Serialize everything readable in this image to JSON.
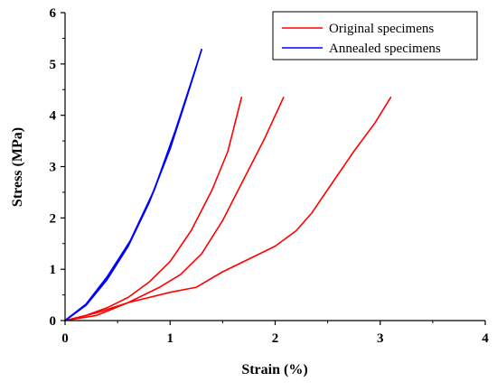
{
  "chart_data": {
    "type": "line",
    "xlabel": "Strain (%)",
    "ylabel": "Stress (MPa)",
    "xlim": [
      0,
      4
    ],
    "ylim": [
      0,
      6
    ],
    "x_ticks": [
      0,
      1,
      2,
      3,
      4
    ],
    "y_ticks": [
      0,
      1,
      2,
      3,
      4,
      5,
      6
    ],
    "x_tick_labels": [
      "0",
      "1",
      "2",
      "3",
      "4"
    ],
    "y_tick_labels": [
      "0",
      "1",
      "2",
      "3",
      "4",
      "5",
      "6"
    ],
    "grid": false,
    "legend_position": "top-right",
    "legend": [
      {
        "label": "Original specimens",
        "color": "#ff0000"
      },
      {
        "label": "Annealed specimens",
        "color": "#0000ff"
      }
    ],
    "series": [
      {
        "group": "Original specimens",
        "color": "#ff0000",
        "points": [
          [
            0,
            0
          ],
          [
            0.2,
            0.1
          ],
          [
            0.4,
            0.25
          ],
          [
            0.6,
            0.45
          ],
          [
            0.8,
            0.75
          ],
          [
            1.0,
            1.15
          ],
          [
            1.2,
            1.75
          ],
          [
            1.4,
            2.55
          ],
          [
            1.55,
            3.3
          ],
          [
            1.68,
            4.35
          ]
        ]
      },
      {
        "group": "Original specimens",
        "color": "#ff0000",
        "points": [
          [
            0,
            0
          ],
          [
            0.3,
            0.1
          ],
          [
            0.6,
            0.35
          ],
          [
            0.9,
            0.65
          ],
          [
            1.1,
            0.9
          ],
          [
            1.3,
            1.3
          ],
          [
            1.5,
            1.95
          ],
          [
            1.7,
            2.75
          ],
          [
            1.9,
            3.55
          ],
          [
            2.08,
            4.35
          ]
        ]
      },
      {
        "group": "Original specimens",
        "color": "#ff0000",
        "points": [
          [
            0,
            0
          ],
          [
            0.3,
            0.15
          ],
          [
            0.6,
            0.35
          ],
          [
            1.0,
            0.55
          ],
          [
            1.25,
            0.65
          ],
          [
            1.5,
            0.95
          ],
          [
            1.8,
            1.25
          ],
          [
            2.0,
            1.45
          ],
          [
            2.2,
            1.75
          ],
          [
            2.35,
            2.1
          ],
          [
            2.55,
            2.7
          ],
          [
            2.75,
            3.3
          ],
          [
            2.95,
            3.85
          ],
          [
            3.1,
            4.35
          ]
        ]
      },
      {
        "group": "Annealed specimens",
        "color": "#0000ff",
        "points": [
          [
            0,
            0
          ],
          [
            0.2,
            0.3
          ],
          [
            0.4,
            0.8
          ],
          [
            0.6,
            1.45
          ],
          [
            0.8,
            2.3
          ],
          [
            1.0,
            3.35
          ],
          [
            1.15,
            4.3
          ],
          [
            1.3,
            5.28
          ]
        ]
      },
      {
        "group": "Annealed specimens",
        "color": "#0000ff",
        "points": [
          [
            0,
            0
          ],
          [
            0.2,
            0.32
          ],
          [
            0.4,
            0.85
          ],
          [
            0.62,
            1.55
          ],
          [
            0.85,
            2.55
          ],
          [
            1.05,
            3.7
          ],
          [
            1.25,
            4.95
          ]
        ]
      }
    ]
  }
}
